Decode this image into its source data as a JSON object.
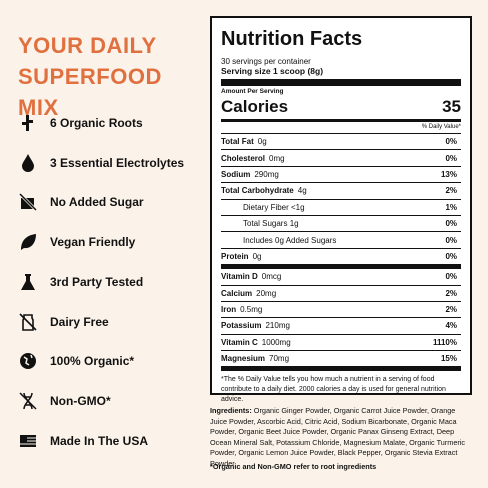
{
  "heading": "YOUR DAILY SUPERFOOD MIX",
  "features": [
    "6 Organic Roots",
    "3 Essential Electrolytes",
    "No Added Sugar",
    "Vegan Friendly",
    "3rd Party Tested",
    "Dairy Free",
    "100% Organic*",
    "Non-GMO*",
    "Made In The USA"
  ],
  "nutrition": {
    "title": "Nutrition Facts",
    "servings": "30 servings per container",
    "serving_size": "Serving size 1 scoop (8g)",
    "amount_per_serving": "Amount Per Serving",
    "calories_label": "Calories",
    "calories": "35",
    "dv_header": "% Daily Value*",
    "rows": [
      {
        "name": "Total Fat",
        "amount": "0g",
        "dv": "0%"
      },
      {
        "name": "Cholesterol",
        "amount": "0mg",
        "dv": "0%"
      },
      {
        "name": "Sodium",
        "amount": "290mg",
        "dv": "13%"
      },
      {
        "name": "Total Carbohydrate",
        "amount": "4g",
        "dv": "2%"
      },
      {
        "name": "Dietary Fiber <1g",
        "dv": "1%"
      },
      {
        "name": "Total Sugars 1g",
        "dv": "0%"
      },
      {
        "name": "Includes 0g Added Sugars",
        "dv": "0%"
      },
      {
        "name": "Protein",
        "amount": "0g",
        "dv": "0%"
      },
      {
        "name": "Vitamin D",
        "amount": "0mcg",
        "dv": "0%"
      },
      {
        "name": "Calcium",
        "amount": "20mg",
        "dv": "2%"
      },
      {
        "name": "Iron",
        "amount": "0.5mg",
        "dv": "2%"
      },
      {
        "name": "Potassium",
        "amount": "210mg",
        "dv": "4%"
      },
      {
        "name": "Vitamin C",
        "amount": "1000mg",
        "dv": "1110%"
      },
      {
        "name": "Magnesium",
        "amount": "70mg",
        "dv": "15%"
      }
    ],
    "footnote": "*The % Daily Value tells you how much a nutrient in a serving of food contribute to a daily diet. 2000 calories a day is used for general nutrition advice."
  },
  "ingredients": {
    "label": "Ingredients:",
    "text": "Organic Ginger Powder, Organic Carrot Juice Powder, Orange Juice Powder, Ascorbic Acid, Citric Acid, Sodium Bicarbonate, Organic Maca Powder, Organic Beet Juice Powder, Organic Panax Ginseng Extract, Deep Ocean Mineral Salt, Potassium Chloride, Magnesium Malate, Organic Turmeric Powder, Organic Lemon Juice Powder, Black Pepper, Organic Stevia Extract Powder"
  },
  "note": "*Organic and Non-GMO refer to root ingredients"
}
